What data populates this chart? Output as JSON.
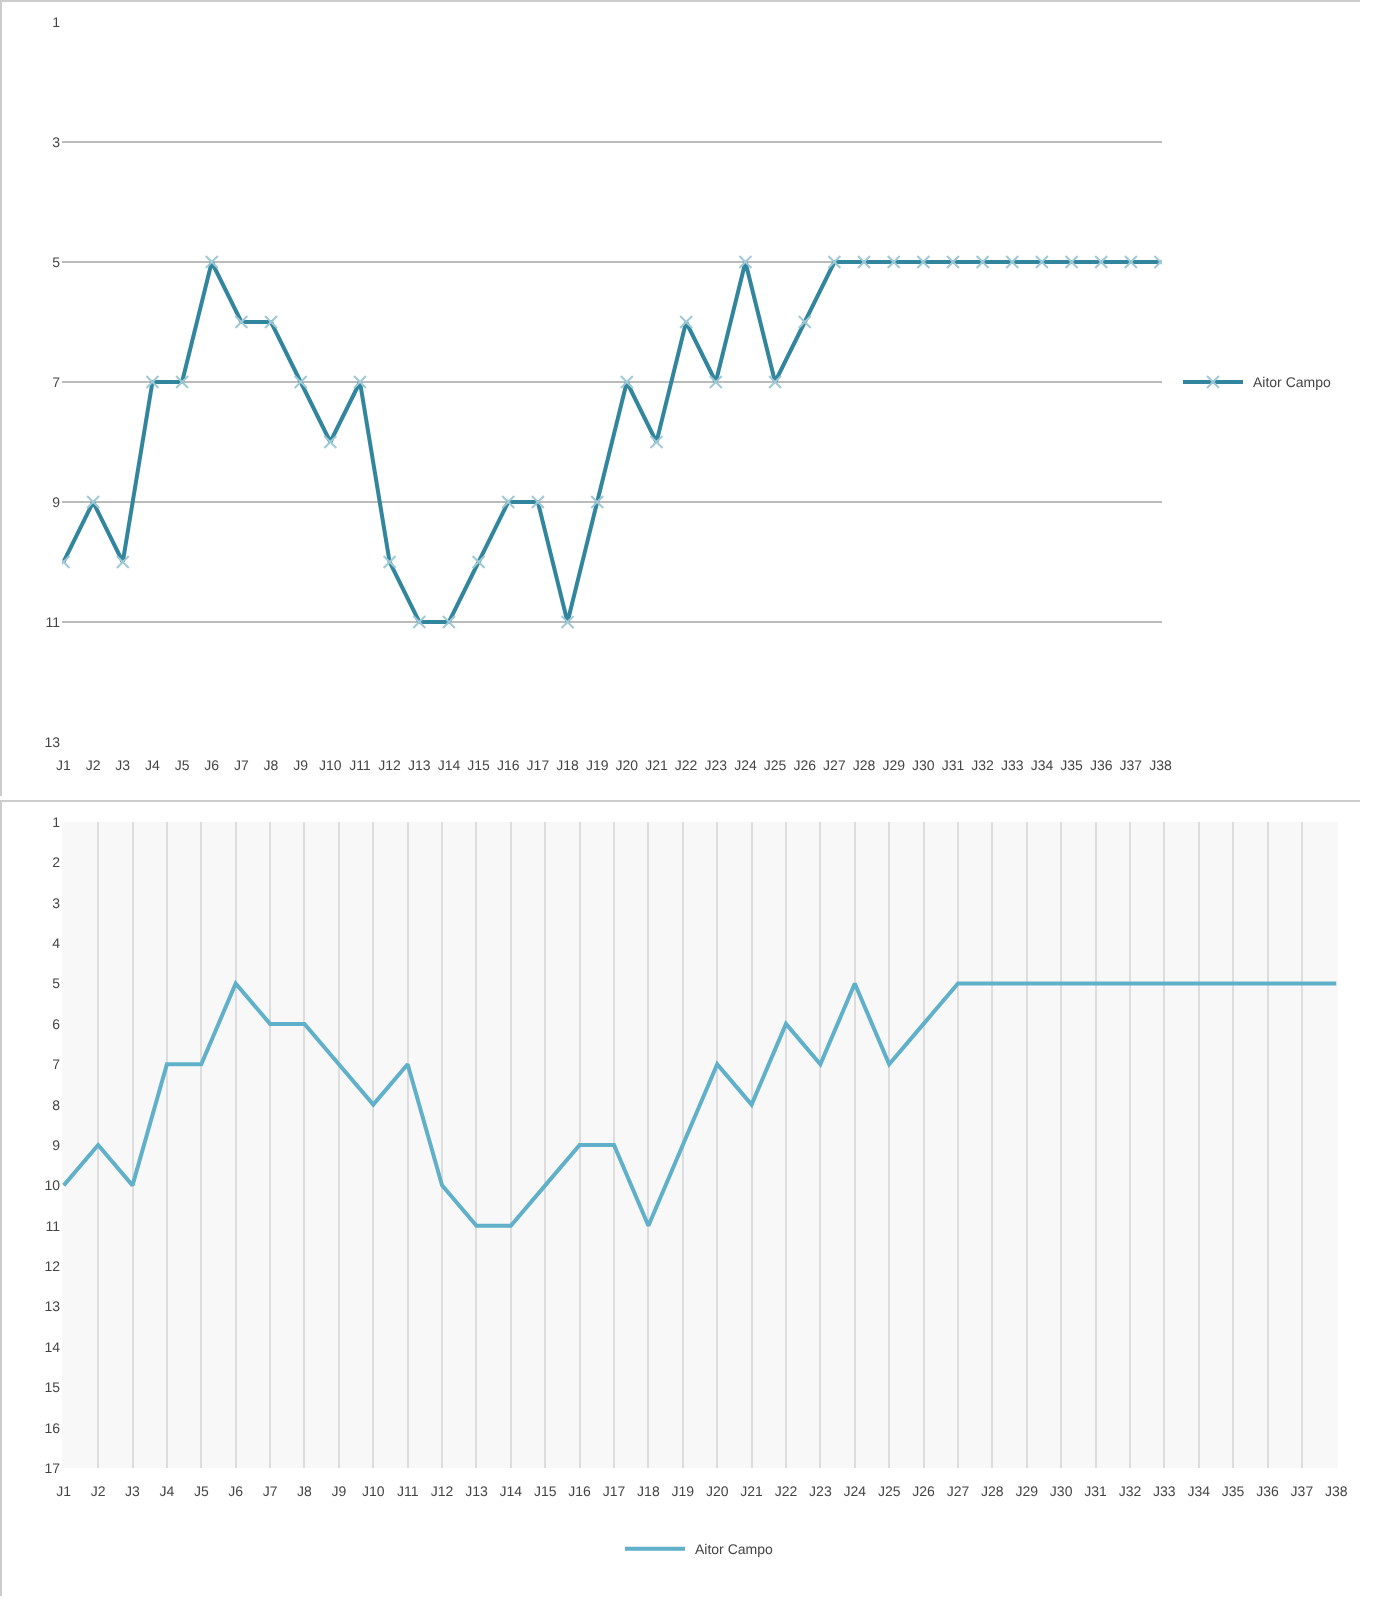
{
  "chart_data": [
    {
      "type": "line",
      "categories": [
        "J1",
        "J2",
        "J3",
        "J4",
        "J5",
        "J6",
        "J7",
        "J8",
        "J9",
        "J10",
        "J11",
        "J12",
        "J13",
        "J14",
        "J15",
        "J16",
        "J17",
        "J18",
        "J19",
        "J20",
        "J21",
        "J22",
        "J23",
        "J24",
        "J25",
        "J26",
        "J27",
        "J28",
        "J29",
        "J30",
        "J31",
        "J32",
        "J33",
        "J34",
        "J35",
        "J36",
        "J37",
        "J38"
      ],
      "series": [
        {
          "name": "Aitor Campo",
          "color": "#31859c",
          "values": [
            10,
            9,
            10,
            7,
            7,
            5,
            6,
            6,
            7,
            8,
            7,
            10,
            11,
            11,
            10,
            9,
            9,
            11,
            9,
            7,
            8,
            6,
            7,
            5,
            7,
            6,
            5,
            5,
            5,
            5,
            5,
            5,
            5,
            5,
            5,
            5,
            5,
            5
          ]
        }
      ],
      "ylim": [
        13,
        1
      ],
      "yticks": [
        1,
        3,
        5,
        7,
        9,
        11,
        13
      ],
      "grid": "y",
      "legend": "right",
      "marker": "cross",
      "line_style": "solid"
    },
    {
      "type": "line",
      "categories": [
        "J1",
        "J2",
        "J3",
        "J4",
        "J5",
        "J6",
        "J7",
        "J8",
        "J9",
        "J10",
        "J11",
        "J12",
        "J13",
        "J14",
        "J15",
        "J16",
        "J17",
        "J18",
        "J19",
        "J20",
        "J21",
        "J22",
        "J23",
        "J24",
        "J25",
        "J26",
        "J27",
        "J28",
        "J29",
        "J30",
        "J31",
        "J32",
        "J33",
        "J34",
        "J35",
        "J36",
        "J37",
        "J38"
      ],
      "series": [
        {
          "name": "Aitor Campo",
          "color": "#5fb0c8",
          "values": [
            10,
            9,
            10,
            7,
            7,
            5,
            6,
            6,
            7,
            8,
            7,
            10,
            11,
            11,
            10,
            9,
            9,
            11,
            9,
            7,
            8,
            6,
            7,
            5,
            7,
            6,
            5,
            5,
            5,
            5,
            5,
            5,
            5,
            5,
            5,
            5,
            5,
            5
          ]
        }
      ],
      "ylim": [
        17,
        1
      ],
      "yticks": [
        1,
        2,
        3,
        4,
        5,
        6,
        7,
        8,
        9,
        10,
        11,
        12,
        13,
        14,
        15,
        16,
        17
      ],
      "grid": "x",
      "legend": "bottom",
      "marker": "none",
      "line_style": "solid"
    }
  ]
}
